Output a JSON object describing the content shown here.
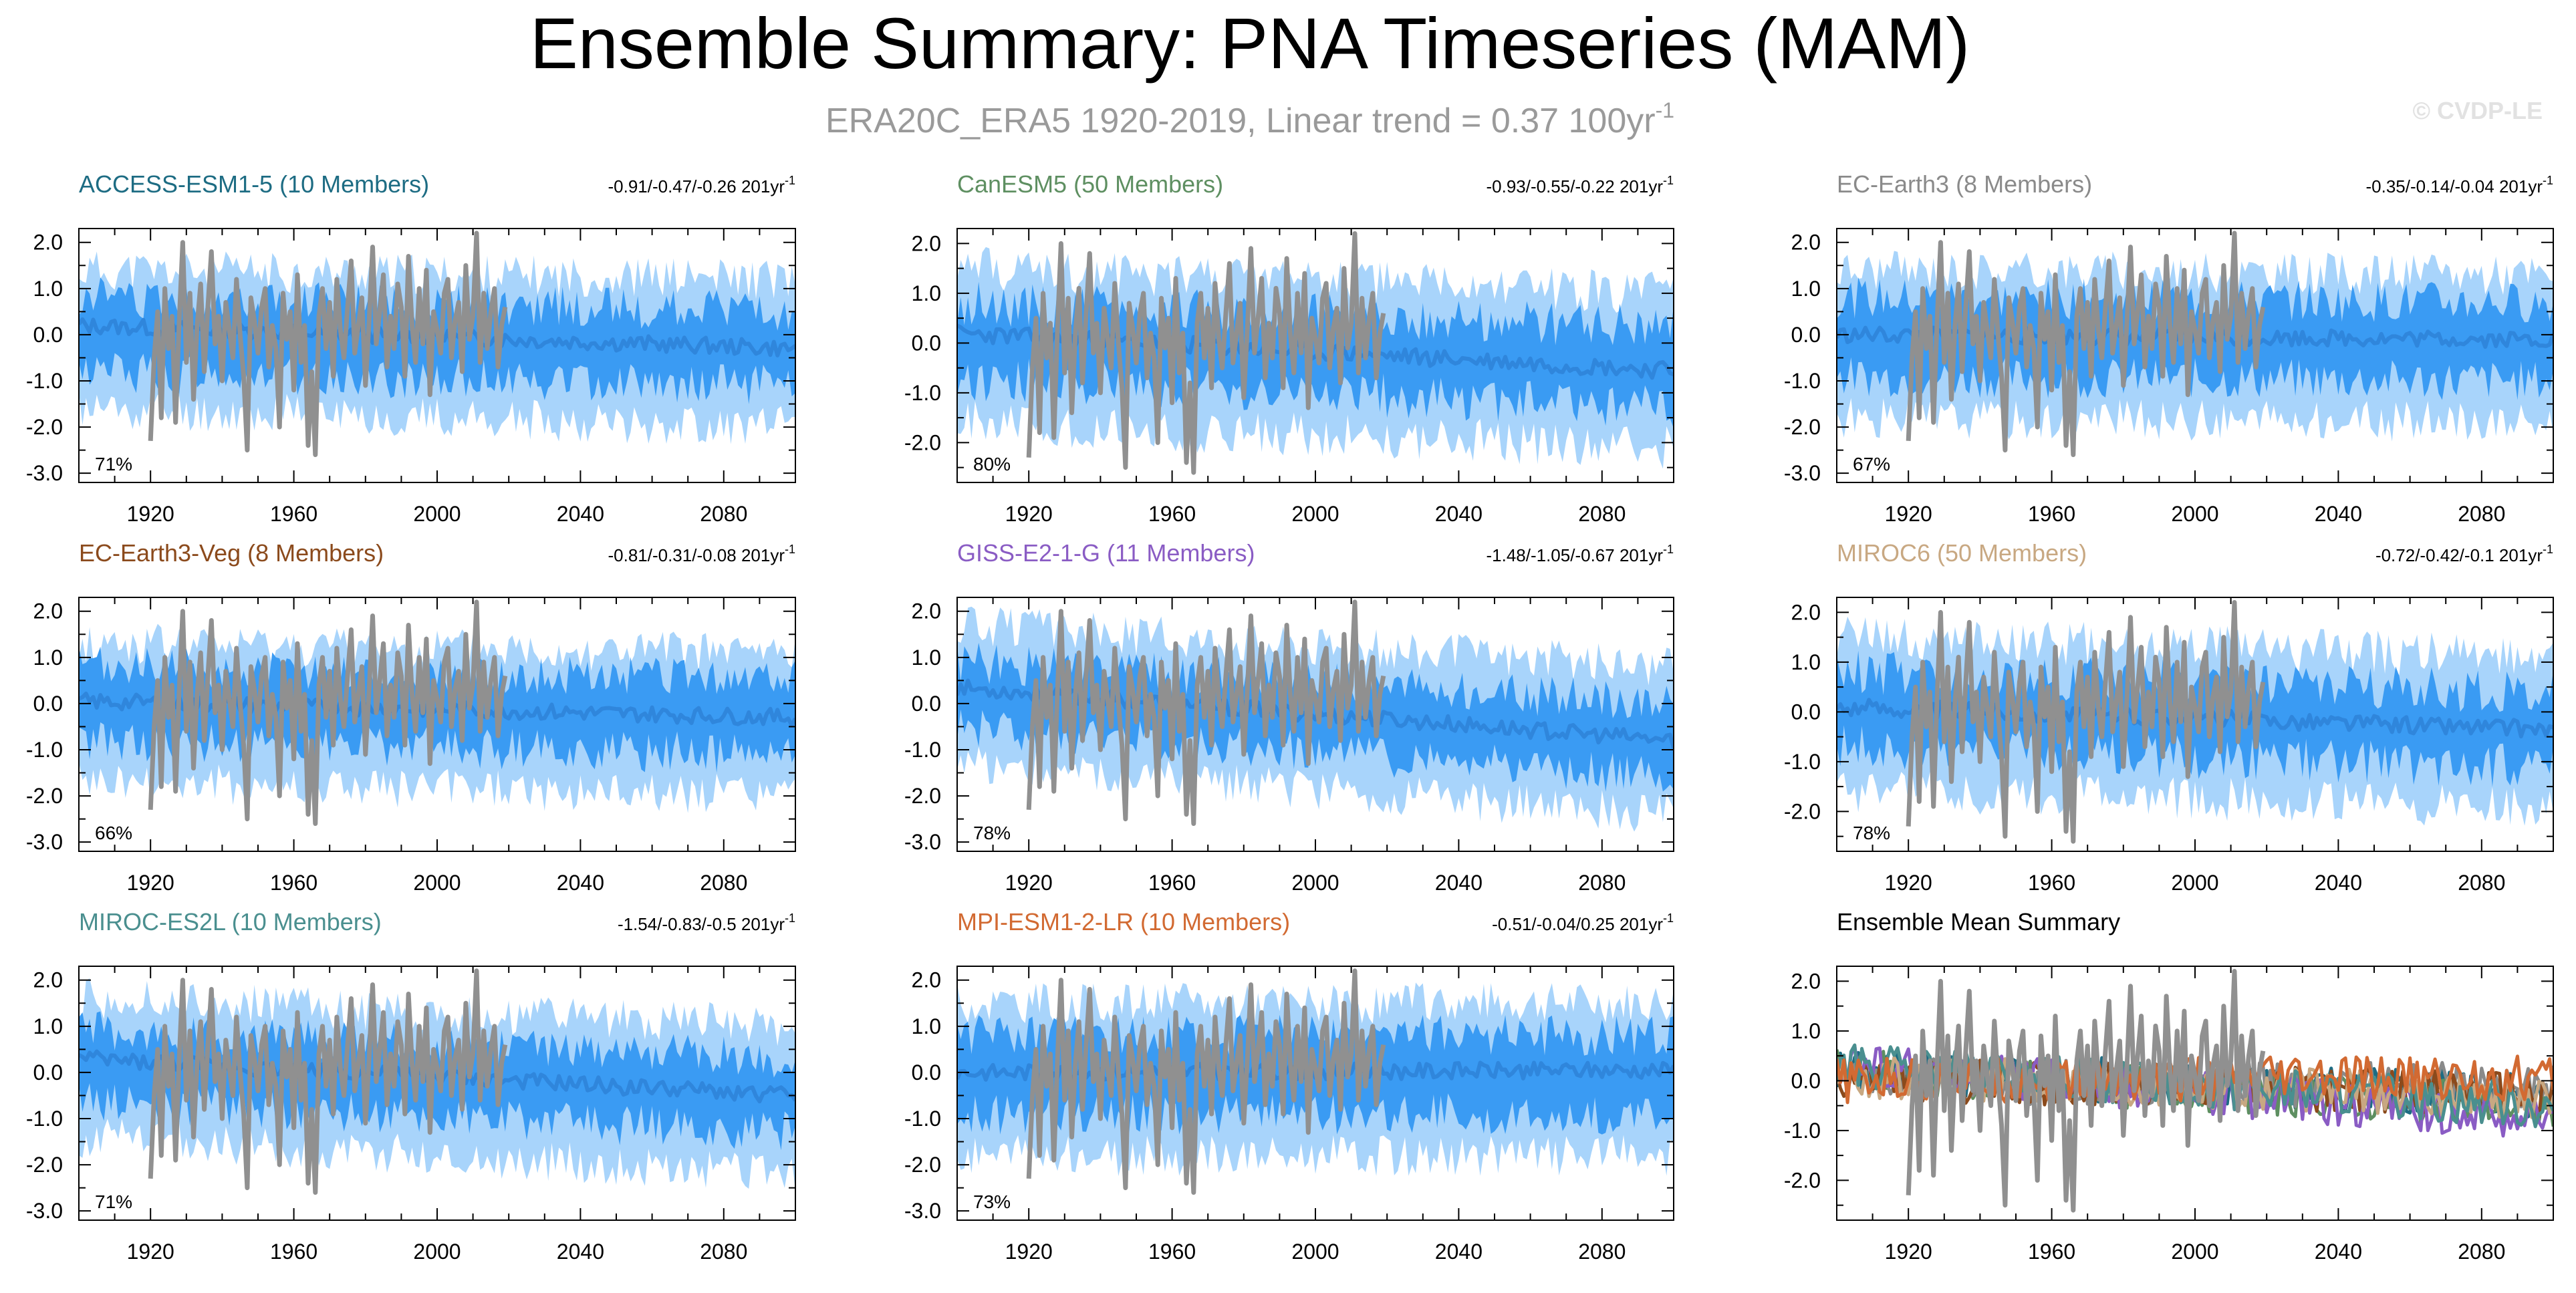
{
  "figure": {
    "title": "Ensemble Summary: PNA Timeseries (MAM)",
    "subtitle_main": "ERA20C_ERA5 1920-2019, Linear trend = 0.37 100yr",
    "subtitle_exp": "-1",
    "watermark": "© CVDP-LE"
  },
  "colors": {
    "observations": "#909090",
    "band_outer": "#a8d4fb",
    "band_inner": "#3a9bf3",
    "ensemble_mean": "#2f86dc",
    "axis": "#000000",
    "title": "#000000",
    "subtitle": "#9a9a9a"
  },
  "chart_data": [
    {
      "type": "line",
      "name": "ACCESS-ESM1-5 (10 Members)",
      "title_color": "#1d6c83",
      "trend_text": "-0.91/-0.47/-0.26 201yr",
      "trend_exp": "-1",
      "pct_label": "71%",
      "xlim": [
        1900,
        2100
      ],
      "ylim": [
        -3.2,
        2.3
      ],
      "yticks": [
        -3.0,
        -2.0,
        -1.0,
        0.0,
        1.0,
        2.0
      ],
      "ytick_labels": [
        "-3.0",
        "-2.0",
        "-1.0",
        "0.0",
        "1.0",
        "2.0"
      ],
      "xticks": [
        1920,
        1960,
        2000,
        2040,
        2080
      ],
      "xtick_labels": [
        "1920",
        "1960",
        "2000",
        "2040",
        "2080"
      ],
      "series": [
        {
          "name": "ensemble min/max",
          "kind": "band",
          "lo_start": -1.6,
          "lo_end": -2.0,
          "hi_start": 1.4,
          "hi_end": 1.2,
          "seed": 11
        },
        {
          "name": "ensemble 10-90%",
          "kind": "band",
          "lo_start": -0.8,
          "lo_end": -1.1,
          "hi_start": 0.8,
          "hi_end": 0.5,
          "seed": 12
        },
        {
          "name": "ensemble mean",
          "kind": "mean",
          "start": 0.2,
          "end": -0.3,
          "seed": 13
        },
        {
          "name": "ERA20C_ERA5",
          "kind": "obs",
          "range": [
            1920,
            2019
          ]
        }
      ]
    },
    {
      "type": "line",
      "name": "CanESM5 (50 Members)",
      "title_color": "#5e8f61",
      "trend_text": "-0.93/-0.55/-0.22 201yr",
      "trend_exp": "-1",
      "pct_label": "80%",
      "xlim": [
        1900,
        2100
      ],
      "ylim": [
        -2.8,
        2.3
      ],
      "yticks": [
        -2.0,
        -1.0,
        0.0,
        1.0,
        2.0
      ],
      "ytick_labels": [
        "-2.0",
        "-1.0",
        "0.0",
        "1.0",
        "2.0"
      ],
      "xticks": [
        1920,
        1960,
        2000,
        2040,
        2080
      ],
      "xtick_labels": [
        "1920",
        "1960",
        "2000",
        "2040",
        "2080"
      ],
      "series": [
        {
          "name": "ensemble min/max",
          "kind": "band",
          "lo_start": -1.6,
          "lo_end": -2.1,
          "hi_start": 1.5,
          "hi_end": 1.0,
          "seed": 21
        },
        {
          "name": "ensemble 10-90%",
          "kind": "band",
          "lo_start": -0.7,
          "lo_end": -1.3,
          "hi_start": 0.8,
          "hi_end": 0.3,
          "seed": 22
        },
        {
          "name": "ensemble mean",
          "kind": "mean",
          "start": 0.2,
          "end": -0.55,
          "seed": 23
        },
        {
          "name": "ERA20C_ERA5",
          "kind": "obs",
          "range": [
            1920,
            2019
          ]
        }
      ]
    },
    {
      "type": "line",
      "name": "EC-Earth3 (8 Members)",
      "title_color": "#8a8a8a",
      "trend_text": "-0.35/-0.14/-0.04 201yr",
      "trend_exp": "-1",
      "pct_label": "67%",
      "xlim": [
        1900,
        2100
      ],
      "ylim": [
        -3.2,
        2.3
      ],
      "yticks": [
        -3.0,
        -2.0,
        -1.0,
        0.0,
        1.0,
        2.0
      ],
      "ytick_labels": [
        "-3.0",
        "-2.0",
        "-1.0",
        "0.0",
        "1.0",
        "2.0"
      ],
      "xticks": [
        1920,
        1960,
        2000,
        2040,
        2080
      ],
      "xtick_labels": [
        "1920",
        "1960",
        "2000",
        "2040",
        "2080"
      ],
      "series": [
        {
          "name": "ensemble min/max",
          "kind": "band",
          "lo_start": -1.8,
          "lo_end": -1.9,
          "hi_start": 1.4,
          "hi_end": 1.3,
          "seed": 31
        },
        {
          "name": "ensemble 10-90%",
          "kind": "band",
          "lo_start": -0.9,
          "lo_end": -1.0,
          "hi_start": 0.8,
          "hi_end": 0.7,
          "seed": 32
        },
        {
          "name": "ensemble mean",
          "kind": "mean",
          "start": 0.0,
          "end": -0.1,
          "seed": 33
        },
        {
          "name": "ERA20C_ERA5",
          "kind": "obs",
          "range": [
            1920,
            2019
          ]
        }
      ]
    },
    {
      "type": "line",
      "name": "EC-Earth3-Veg (8 Members)",
      "title_color": "#8b4a1c",
      "trend_text": "-0.81/-0.31/-0.08 201yr",
      "trend_exp": "-1",
      "pct_label": "66%",
      "xlim": [
        1900,
        2100
      ],
      "ylim": [
        -3.2,
        2.3
      ],
      "yticks": [
        -3.0,
        -2.0,
        -1.0,
        0.0,
        1.0,
        2.0
      ],
      "ytick_labels": [
        "-3.0",
        "-2.0",
        "-1.0",
        "0.0",
        "1.0",
        "2.0"
      ],
      "xticks": [
        1920,
        1960,
        2000,
        2040,
        2080
      ],
      "xtick_labels": [
        "1920",
        "1960",
        "2000",
        "2040",
        "2080"
      ],
      "series": [
        {
          "name": "ensemble min/max",
          "kind": "band",
          "lo_start": -1.7,
          "lo_end": -2.0,
          "hi_start": 1.3,
          "hi_end": 1.1,
          "seed": 41
        },
        {
          "name": "ensemble 10-90%",
          "kind": "band",
          "lo_start": -0.8,
          "lo_end": -1.1,
          "hi_start": 0.8,
          "hi_end": 0.5,
          "seed": 42
        },
        {
          "name": "ensemble mean",
          "kind": "mean",
          "start": 0.05,
          "end": -0.3,
          "seed": 43
        },
        {
          "name": "ERA20C_ERA5",
          "kind": "obs",
          "range": [
            1920,
            2019
          ]
        }
      ]
    },
    {
      "type": "line",
      "name": "GISS-E2-1-G (11 Members)",
      "title_color": "#8a5cc4",
      "trend_text": "-1.48/-1.05/-0.67 201yr",
      "trend_exp": "-1",
      "pct_label": "78%",
      "xlim": [
        1900,
        2100
      ],
      "ylim": [
        -3.2,
        2.3
      ],
      "yticks": [
        -3.0,
        -2.0,
        -1.0,
        0.0,
        1.0,
        2.0
      ],
      "ytick_labels": [
        "-3.0",
        "-2.0",
        "-1.0",
        "0.0",
        "1.0",
        "2.0"
      ],
      "xticks": [
        1920,
        1960,
        2000,
        2040,
        2080
      ],
      "xtick_labels": [
        "1920",
        "1960",
        "2000",
        "2040",
        "2080"
      ],
      "series": [
        {
          "name": "ensemble min/max",
          "kind": "band",
          "lo_start": -1.3,
          "lo_end": -2.4,
          "hi_start": 1.7,
          "hi_end": 0.8,
          "seed": 51
        },
        {
          "name": "ensemble 10-90%",
          "kind": "band",
          "lo_start": -0.5,
          "lo_end": -1.6,
          "hi_start": 0.9,
          "hi_end": 0.0,
          "seed": 52
        },
        {
          "name": "ensemble mean",
          "kind": "mean",
          "start": 0.35,
          "end": -0.8,
          "seed": 53
        },
        {
          "name": "ERA20C_ERA5",
          "kind": "obs",
          "range": [
            1920,
            2019
          ]
        }
      ]
    },
    {
      "type": "line",
      "name": "MIROC6 (50 Members)",
      "title_color": "#c8a882",
      "trend_text": "-0.72/-0.42/-0.1 201yr",
      "trend_exp": "-1",
      "pct_label": "78%",
      "xlim": [
        1900,
        2100
      ],
      "ylim": [
        -2.8,
        2.3
      ],
      "yticks": [
        -2.0,
        -1.0,
        0.0,
        1.0,
        2.0
      ],
      "ytick_labels": [
        "-2.0",
        "-1.0",
        "0.0",
        "1.0",
        "2.0"
      ],
      "xticks": [
        1920,
        1960,
        2000,
        2040,
        2080
      ],
      "xtick_labels": [
        "1920",
        "1960",
        "2000",
        "2040",
        "2080"
      ],
      "series": [
        {
          "name": "ensemble min/max",
          "kind": "band",
          "lo_start": -1.6,
          "lo_end": -1.9,
          "hi_start": 1.5,
          "hi_end": 1.1,
          "seed": 61
        },
        {
          "name": "ensemble 10-90%",
          "kind": "band",
          "lo_start": -0.7,
          "lo_end": -1.1,
          "hi_start": 0.8,
          "hi_end": 0.4,
          "seed": 62
        },
        {
          "name": "ensemble mean",
          "kind": "mean",
          "start": 0.1,
          "end": -0.35,
          "seed": 63
        },
        {
          "name": "ERA20C_ERA5",
          "kind": "obs",
          "range": [
            1920,
            2019
          ]
        }
      ]
    },
    {
      "type": "line",
      "name": "MIROC-ES2L (10 Members)",
      "title_color": "#4a8f8f",
      "trend_text": "-1.54/-0.83/-0.5 201yr",
      "trend_exp": "-1",
      "pct_label": "71%",
      "xlim": [
        1900,
        2100
      ],
      "ylim": [
        -3.2,
        2.3
      ],
      "yticks": [
        -3.0,
        -2.0,
        -1.0,
        0.0,
        1.0,
        2.0
      ],
      "ytick_labels": [
        "-3.0",
        "-2.0",
        "-1.0",
        "0.0",
        "1.0",
        "2.0"
      ],
      "xticks": [
        1920,
        1960,
        2000,
        2040,
        2080
      ],
      "xtick_labels": [
        "1920",
        "1960",
        "2000",
        "2040",
        "2080"
      ],
      "series": [
        {
          "name": "ensemble min/max",
          "kind": "band",
          "lo_start": -1.4,
          "lo_end": -2.2,
          "hi_start": 1.6,
          "hi_end": 1.0,
          "seed": 71
        },
        {
          "name": "ensemble 10-90%",
          "kind": "band",
          "lo_start": -0.6,
          "lo_end": -1.3,
          "hi_start": 0.9,
          "hi_end": 0.3,
          "seed": 72
        },
        {
          "name": "ensemble mean",
          "kind": "mean",
          "start": 0.3,
          "end": -0.5,
          "seed": 73
        },
        {
          "name": "ERA20C_ERA5",
          "kind": "obs",
          "range": [
            1920,
            2019
          ]
        }
      ]
    },
    {
      "type": "line",
      "name": "MPI-ESM1-2-LR (10 Members)",
      "title_color": "#d26a32",
      "trend_text": "-0.51/-0.04/0.25 201yr",
      "trend_exp": "-1",
      "pct_label": "73%",
      "xlim": [
        1900,
        2100
      ],
      "ylim": [
        -3.2,
        2.3
      ],
      "yticks": [
        -3.0,
        -2.0,
        -1.0,
        0.0,
        1.0,
        2.0
      ],
      "ytick_labels": [
        "-3.0",
        "-2.0",
        "-1.0",
        "0.0",
        "1.0",
        "2.0"
      ],
      "xticks": [
        1920,
        1960,
        2000,
        2040,
        2080
      ],
      "xtick_labels": [
        "1920",
        "1960",
        "2000",
        "2040",
        "2080"
      ],
      "series": [
        {
          "name": "ensemble min/max",
          "kind": "band",
          "lo_start": -1.8,
          "lo_end": -1.8,
          "hi_start": 1.5,
          "hi_end": 1.5,
          "seed": 81
        },
        {
          "name": "ensemble 10-90%",
          "kind": "band",
          "lo_start": -0.9,
          "lo_end": -0.9,
          "hi_start": 0.8,
          "hi_end": 0.8,
          "seed": 82
        },
        {
          "name": "ensemble mean",
          "kind": "mean",
          "start": 0.0,
          "end": 0.05,
          "seed": 83
        },
        {
          "name": "ERA20C_ERA5",
          "kind": "obs",
          "range": [
            1920,
            2019
          ]
        }
      ]
    },
    {
      "type": "line",
      "name": "Ensemble Mean Summary",
      "title_color": "#000000",
      "trend_text": "",
      "trend_exp": "",
      "pct_label": "",
      "xlim": [
        1900,
        2100
      ],
      "ylim": [
        -2.8,
        2.3
      ],
      "yticks": [
        -2.0,
        -1.0,
        0.0,
        1.0,
        2.0
      ],
      "ytick_labels": [
        "-2.0",
        "-1.0",
        "0.0",
        "1.0",
        "2.0"
      ],
      "xticks": [
        1920,
        1960,
        2000,
        2040,
        2080
      ],
      "xtick_labels": [
        "1920",
        "1960",
        "2000",
        "2040",
        "2080"
      ],
      "series": [
        {
          "name": "ERA20C_ERA5",
          "kind": "obs",
          "range": [
            1920,
            2019
          ]
        },
        {
          "name": "ACCESS-ESM1-5",
          "kind": "emean",
          "color": "#1d6c83",
          "start": 0.2,
          "end": -0.3,
          "seed": 101
        },
        {
          "name": "CanESM5",
          "kind": "emean",
          "color": "#5e8f61",
          "start": 0.2,
          "end": -0.55,
          "seed": 102
        },
        {
          "name": "EC-Earth3",
          "kind": "emean",
          "color": "#8a8a8a",
          "start": 0.0,
          "end": -0.1,
          "seed": 103
        },
        {
          "name": "EC-Earth3-Veg",
          "kind": "emean",
          "color": "#8b4a1c",
          "start": 0.05,
          "end": -0.3,
          "seed": 104
        },
        {
          "name": "GISS-E2-1-G",
          "kind": "emean",
          "color": "#8a5cc4",
          "start": 0.35,
          "end": -0.8,
          "seed": 105
        },
        {
          "name": "MIROC6",
          "kind": "emean",
          "color": "#c8a882",
          "start": 0.1,
          "end": -0.35,
          "seed": 106
        },
        {
          "name": "MIROC-ES2L",
          "kind": "emean",
          "color": "#4a8f8f",
          "start": 0.3,
          "end": -0.5,
          "seed": 107
        },
        {
          "name": "MPI-ESM1-2-LR",
          "kind": "emean",
          "color": "#d26a32",
          "start": 0.0,
          "end": 0.05,
          "seed": 108
        }
      ]
    }
  ],
  "observations": {
    "name": "ERA20C_ERA5",
    "years": [
      1920,
      2019
    ],
    "values": [
      -2.3,
      -0.5,
      0.5,
      -1.8,
      1.0,
      -0.3,
      0.4,
      -1.9,
      0.3,
      2.0,
      -0.6,
      0.9,
      -1.4,
      0.2,
      1.1,
      -0.8,
      0.6,
      1.8,
      -0.2,
      0.4,
      -1.0,
      0.7,
      0.1,
      -0.5,
      1.2,
      0.0,
      -0.9,
      -2.5,
      0.8,
      0.3,
      -0.4,
      0.6,
      1.0,
      -0.7,
      0.2,
      -0.3,
      -2.0,
      0.9,
      -0.1,
      0.5,
      -1.2,
      1.3,
      -0.6,
      0.2,
      -2.4,
      -0.8,
      -2.6,
      0.4,
      1.0,
      -0.3,
      0.7,
      -0.9,
      1.2,
      0.1,
      -0.5,
      0.6,
      1.6,
      -0.4,
      0.2,
      0.8,
      -1.1,
      0.3,
      1.9,
      -0.2,
      0.5,
      1.3,
      -0.7,
      0.4,
      -0.3,
      1.1,
      0.6,
      -0.9,
      1.7,
      0.2,
      -0.6,
      1.0,
      -0.2,
      1.4,
      -1.3,
      0.5,
      0.1,
      -0.4,
      0.9,
      1.2,
      -0.5,
      0.3,
      0.7,
      -0.8,
      1.5,
      -0.1,
      0.4,
      2.2,
      -0.6,
      0.9,
      -0.3,
      0.5,
      1.0,
      -0.7,
      0.2,
      0.6
    ]
  }
}
